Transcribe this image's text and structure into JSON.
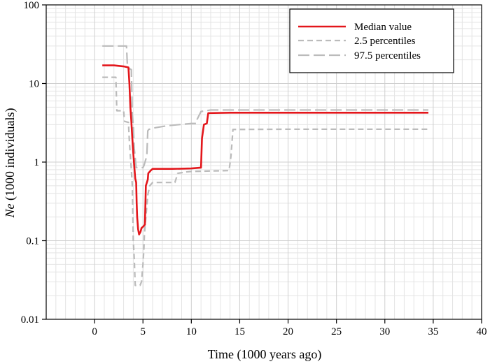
{
  "chart_data": {
    "type": "line",
    "xlabel": "Time (1000 years ago)",
    "ylabel_italic": "Ne",
    "ylabel_rest": " (1000 individuals)",
    "xlim": [
      -5,
      40
    ],
    "ylim": [
      0.01,
      100
    ],
    "y_scale": "log",
    "x_ticks": [
      0,
      5,
      10,
      15,
      20,
      25,
      30,
      35,
      40
    ],
    "y_ticks": [
      0.01,
      0.1,
      1,
      10,
      100
    ],
    "y_tick_labels": [
      "0.01",
      "0.1",
      "1",
      "10",
      "100"
    ],
    "grid": true,
    "legend_position": "top-right",
    "series": [
      {
        "name": "Median value",
        "color": "#e3161b",
        "style": "solid",
        "points": [
          [
            0.8,
            17
          ],
          [
            2.0,
            17
          ],
          [
            3.0,
            16.5
          ],
          [
            3.5,
            16
          ],
          [
            3.6,
            10
          ],
          [
            3.7,
            5
          ],
          [
            3.8,
            3.3
          ],
          [
            3.9,
            2
          ],
          [
            4.0,
            1.3
          ],
          [
            4.1,
            0.9
          ],
          [
            4.2,
            0.62
          ],
          [
            4.3,
            0.55
          ],
          [
            4.35,
            0.3
          ],
          [
            4.4,
            0.2
          ],
          [
            4.5,
            0.14
          ],
          [
            4.6,
            0.12
          ],
          [
            4.75,
            0.13
          ],
          [
            4.85,
            0.145
          ],
          [
            5.0,
            0.15
          ],
          [
            5.2,
            0.16
          ],
          [
            5.3,
            0.5
          ],
          [
            5.5,
            0.6
          ],
          [
            5.55,
            0.72
          ],
          [
            5.8,
            0.78
          ],
          [
            6.0,
            0.82
          ],
          [
            8,
            0.82
          ],
          [
            10,
            0.83
          ],
          [
            11.0,
            0.85
          ],
          [
            11.1,
            2.0
          ],
          [
            11.3,
            3.0
          ],
          [
            11.6,
            3.1
          ],
          [
            11.75,
            4.2
          ],
          [
            14,
            4.25
          ],
          [
            20,
            4.25
          ],
          [
            34.5,
            4.25
          ]
        ]
      },
      {
        "name": "2.5 percentiles",
        "color": "#bbbbbb",
        "style": "dashed-short",
        "points": [
          [
            0.8,
            12
          ],
          [
            2.2,
            12
          ],
          [
            2.3,
            4.5
          ],
          [
            3.0,
            4.5
          ],
          [
            3.1,
            3.3
          ],
          [
            3.5,
            3.2
          ],
          [
            3.6,
            1.8
          ],
          [
            3.8,
            0.8
          ],
          [
            3.9,
            0.5
          ],
          [
            4.0,
            0.1
          ],
          [
            4.1,
            0.06
          ],
          [
            4.2,
            0.027
          ],
          [
            4.7,
            0.027
          ],
          [
            4.85,
            0.03
          ],
          [
            5.0,
            0.05
          ],
          [
            5.1,
            0.08
          ],
          [
            5.15,
            0.12
          ],
          [
            5.3,
            0.2
          ],
          [
            5.5,
            0.38
          ],
          [
            5.7,
            0.5
          ],
          [
            6.0,
            0.55
          ],
          [
            8.3,
            0.55
          ],
          [
            8.4,
            0.6
          ],
          [
            8.6,
            0.72
          ],
          [
            9.5,
            0.75
          ],
          [
            10,
            0.76
          ],
          [
            13.9,
            0.78
          ],
          [
            14.1,
            1.2
          ],
          [
            14.3,
            2.6
          ],
          [
            20,
            2.62
          ],
          [
            34.5,
            2.62
          ]
        ]
      },
      {
        "name": "97.5 percentiles",
        "color": "#bbbbbb",
        "style": "dashed-long",
        "points": [
          [
            0.8,
            30
          ],
          [
            3.3,
            30
          ],
          [
            3.4,
            16
          ],
          [
            3.8,
            15
          ],
          [
            3.9,
            4
          ],
          [
            4.0,
            3
          ],
          [
            4.1,
            1.5
          ],
          [
            4.3,
            0.85
          ],
          [
            5.0,
            0.85
          ],
          [
            5.1,
            0.9
          ],
          [
            5.4,
            1.2
          ],
          [
            5.5,
            2.5
          ],
          [
            5.6,
            2.6
          ],
          [
            6.0,
            2.7
          ],
          [
            7.5,
            2.9
          ],
          [
            10,
            3.1
          ],
          [
            10.5,
            3.1
          ],
          [
            10.6,
            3.5
          ],
          [
            11.0,
            4.4
          ],
          [
            12,
            4.6
          ],
          [
            20,
            4.6
          ],
          [
            34.5,
            4.6
          ]
        ]
      }
    ]
  }
}
